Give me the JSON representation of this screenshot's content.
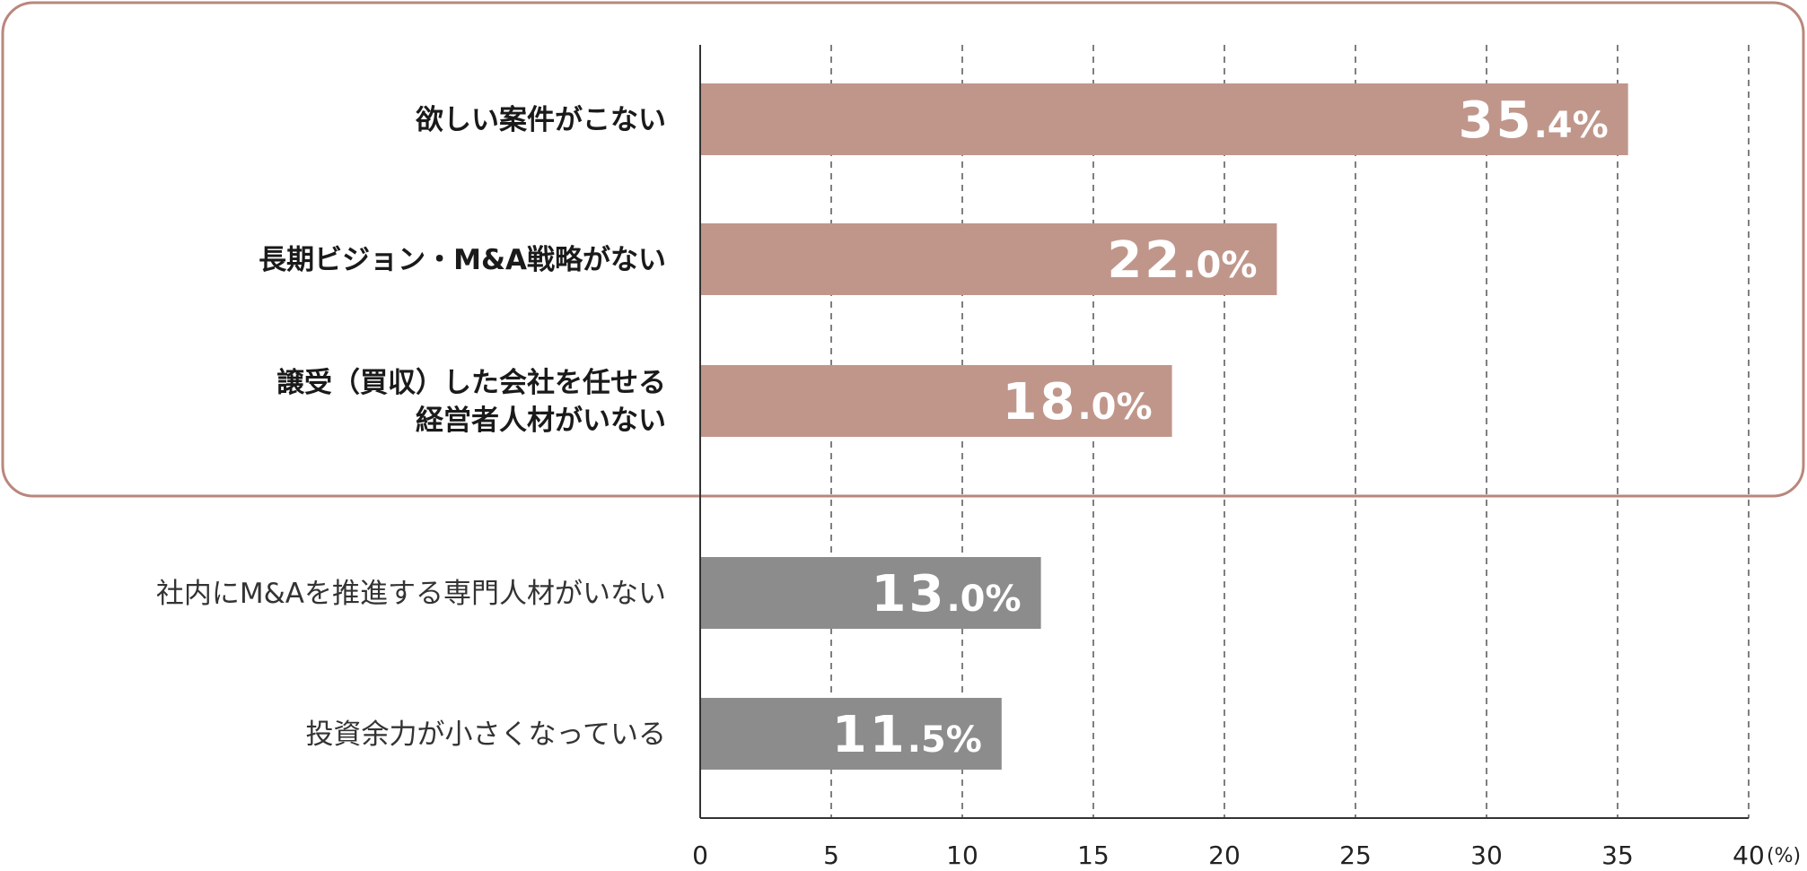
{
  "chart_data": {
    "type": "bar",
    "orientation": "horizontal",
    "title": "",
    "xlabel": "",
    "ylabel": "",
    "xlim": [
      0,
      40
    ],
    "xticks": [
      0,
      5,
      10,
      15,
      20,
      25,
      30,
      35,
      40
    ],
    "x_unit": "(%)",
    "grid": true,
    "categories": [
      [
        "欲しい案件がこない"
      ],
      [
        "長期ビジョン・M&A戦略がない"
      ],
      [
        "譲受（買収）した会社を任せる",
        "経営者人材がいない"
      ],
      [
        "社内にM&Aを推進する専門人材がいない"
      ],
      [
        "投資余力が小さくなっている"
      ]
    ],
    "values": [
      35.4,
      22.0,
      18.0,
      13.0,
      11.5
    ],
    "value_labels": [
      {
        "num": "35",
        "dec": ".4",
        "pct": "%"
      },
      {
        "num": "22",
        "dec": ".0",
        "pct": "%"
      },
      {
        "num": "18",
        "dec": ".0",
        "pct": "%"
      },
      {
        "num": "13",
        "dec": ".0",
        "pct": "%"
      },
      {
        "num": "11",
        "dec": ".5",
        "pct": "%"
      }
    ],
    "highlighted": [
      true,
      true,
      true,
      false,
      false
    ],
    "colors": {
      "highlight_bar": "#c0968b",
      "normal_bar": "#8c8c8c",
      "highlight_frame": "#b9877d",
      "axis": "#333333",
      "grid": "#555555"
    }
  }
}
